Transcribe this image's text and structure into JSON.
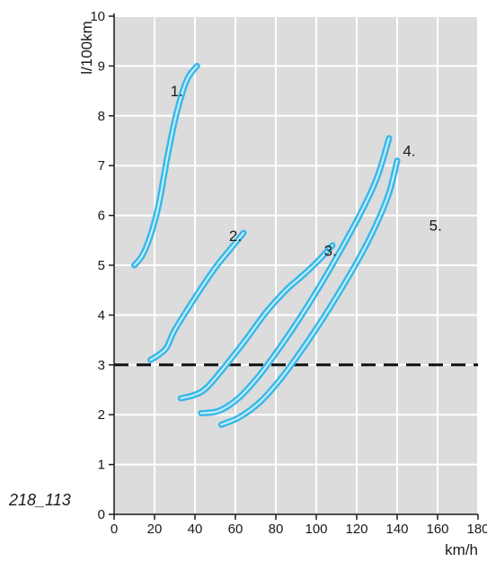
{
  "chart_data": {
    "type": "line",
    "figure_id": "218_113",
    "xlabel": "km/h",
    "ylabel": "l/100km",
    "xlim": [
      0,
      180
    ],
    "ylim": [
      0,
      10
    ],
    "x_ticks": [
      0,
      20,
      40,
      60,
      80,
      100,
      120,
      140,
      160,
      180
    ],
    "y_ticks": [
      0,
      1,
      2,
      3,
      4,
      5,
      6,
      7,
      8,
      9,
      10
    ],
    "grid": true,
    "plot_background": "#dcdcdc",
    "grid_color": "#ffffff",
    "curve_color": "#3bb8e8",
    "curve_highlight": "#c9f0ff",
    "reference_line": {
      "y": 3,
      "style": "dashed",
      "color": "#111111"
    },
    "series": [
      {
        "name": "1.",
        "points": [
          [
            10,
            5.0
          ],
          [
            14,
            5.2
          ],
          [
            18,
            5.6
          ],
          [
            22,
            6.2
          ],
          [
            26,
            7.1
          ],
          [
            30,
            7.9
          ],
          [
            34,
            8.5
          ],
          [
            37,
            8.8
          ],
          [
            41,
            9.0
          ]
        ]
      },
      {
        "name": "2.",
        "points": [
          [
            18,
            3.1
          ],
          [
            22,
            3.2
          ],
          [
            26,
            3.35
          ],
          [
            30,
            3.7
          ],
          [
            40,
            4.35
          ],
          [
            50,
            4.95
          ],
          [
            58,
            5.35
          ],
          [
            64,
            5.65
          ]
        ]
      },
      {
        "name": "3.",
        "points": [
          [
            33,
            2.33
          ],
          [
            40,
            2.4
          ],
          [
            46,
            2.55
          ],
          [
            55,
            2.98
          ],
          [
            65,
            3.5
          ],
          [
            75,
            4.05
          ],
          [
            85,
            4.5
          ],
          [
            92,
            4.75
          ],
          [
            100,
            5.05
          ],
          [
            108,
            5.4
          ]
        ]
      },
      {
        "name": "4.",
        "points": [
          [
            43,
            2.03
          ],
          [
            52,
            2.08
          ],
          [
            62,
            2.35
          ],
          [
            72,
            2.8
          ],
          [
            82,
            3.35
          ],
          [
            92,
            3.95
          ],
          [
            102,
            4.6
          ],
          [
            112,
            5.3
          ],
          [
            122,
            6.05
          ],
          [
            130,
            6.75
          ],
          [
            136,
            7.55
          ]
        ]
      },
      {
        "name": "5.",
        "points": [
          [
            53,
            1.8
          ],
          [
            62,
            1.95
          ],
          [
            72,
            2.25
          ],
          [
            82,
            2.7
          ],
          [
            92,
            3.25
          ],
          [
            102,
            3.85
          ],
          [
            112,
            4.5
          ],
          [
            122,
            5.2
          ],
          [
            130,
            5.85
          ],
          [
            136,
            6.45
          ],
          [
            140,
            7.1
          ]
        ]
      }
    ],
    "series_label_positions": [
      [
        31,
        8.5
      ],
      [
        60,
        5.6
      ],
      [
        107,
        5.3
      ],
      [
        146,
        7.3
      ],
      [
        159,
        5.8
      ]
    ]
  }
}
